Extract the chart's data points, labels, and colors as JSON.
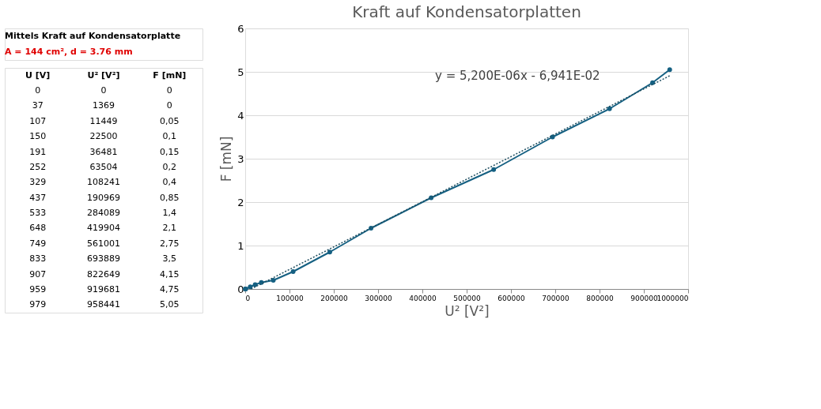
{
  "chart_data": {
    "type": "line",
    "title": "Kraft auf Kondensatorplatten",
    "xlabel": "U² [V²]",
    "ylabel": "F [mN]",
    "x": [
      0,
      1369,
      11449,
      22500,
      36481,
      63504,
      108241,
      190969,
      284089,
      419904,
      561001,
      693889,
      822649,
      919681,
      958441
    ],
    "series": [
      {
        "color": "#156082",
        "marker": "circle",
        "line_style": "solid",
        "values": [
          0,
          0,
          0.05,
          0.1,
          0.15,
          0.2,
          0.4,
          0.85,
          1.4,
          2.1,
          2.75,
          3.5,
          4.15,
          4.75,
          5.05
        ]
      },
      {
        "type": "line",
        "color": "#1f4e60",
        "marker": "none",
        "line_style": "dotted",
        "x": [
          13349,
          958441
        ],
        "values": [
          0,
          4.91
        ]
      }
    ],
    "xlim": [
      0,
      1000000
    ],
    "xticks": [
      0,
      100000,
      200000,
      300000,
      400000,
      500000,
      600000,
      700000,
      800000,
      900000,
      1000000
    ],
    "ylim": [
      0,
      6
    ],
    "yticks": [
      0,
      1,
      2,
      3,
      4,
      5,
      6
    ],
    "grid": "y",
    "annotations": [
      "y = 5,200E-06x - 6,941E-02",
      "Mittels Kraft auf Kondensatorplatte",
      "A = 144 cm², d = 3.76 mm",
      "U [V]",
      "U² [V²]",
      "F [mN]",
      "0",
      "0",
      "0",
      "37",
      "1369",
      "0",
      "107",
      "11449",
      "0,05",
      "150",
      "22500",
      "0,1",
      "191",
      "36481",
      "0,15",
      "252",
      "63504",
      "0,2",
      "329",
      "108241",
      "0,4",
      "437",
      "190969",
      "0,85",
      "533",
      "284089",
      "1,4",
      "648",
      "419904",
      "2,1",
      "749",
      "561001",
      "2,75",
      "833",
      "693889",
      "3,5",
      "907",
      "822649",
      "4,15",
      "959",
      "919681",
      "4,75",
      "979",
      "958441",
      "5,05"
    ]
  }
}
